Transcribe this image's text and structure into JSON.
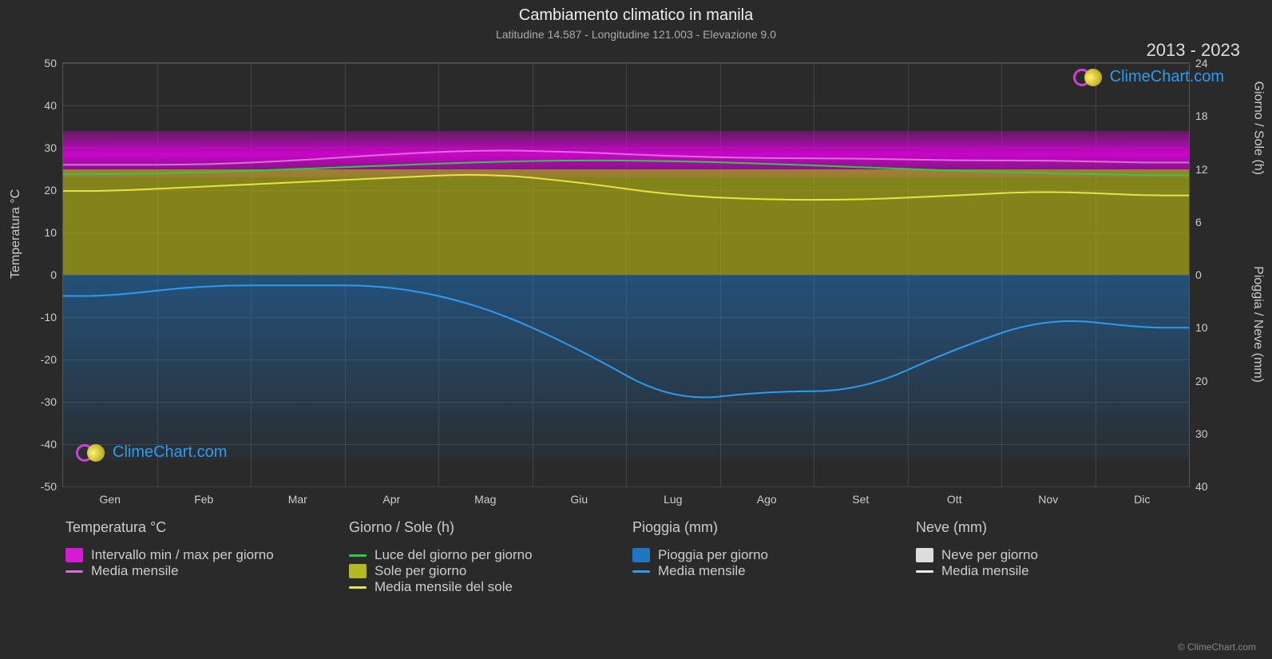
{
  "title": "Cambiamento climatico in manila",
  "subtitle": "Latitudine 14.587 - Longitudine 121.003 - Elevazione 9.0",
  "year_range": "2013 - 2023",
  "brand": "ClimeChart.com",
  "footer": "© ClimeChart.com",
  "axes": {
    "left_label": "Temperatura °C",
    "right_top_label": "Giorno / Sole (h)",
    "right_bot_label": "Pioggia / Neve (mm)",
    "ylim_left": [
      -50,
      50
    ],
    "ytick_step_left": 10,
    "right_top_ticks": [
      0,
      6,
      12,
      18,
      24
    ],
    "right_bot_ticks": [
      0,
      10,
      20,
      30,
      40
    ],
    "months": [
      "Gen",
      "Feb",
      "Mar",
      "Apr",
      "Mag",
      "Giu",
      "Lug",
      "Ago",
      "Set",
      "Ott",
      "Nov",
      "Dic"
    ]
  },
  "colors": {
    "background": "#2a2a2a",
    "grid": "#444",
    "text": "#cccccc",
    "temp_range": "#d61bd6",
    "temp_mean": "#da70d6",
    "daylight": "#2ecc40",
    "sun_fill": "#b5b820",
    "sun_mean": "#e4e447",
    "rain_fill": "#1f77c4",
    "rain_mean": "#2b9cf2",
    "snow_fill": "#dddddd",
    "snow_mean": "#eeeeee",
    "brand": "#2b9cf2"
  },
  "series": {
    "temp_mean_c": [
      26,
      26,
      27,
      28.5,
      29.5,
      29,
      28,
      27.5,
      27.5,
      27,
      27,
      26.5
    ],
    "temp_min_c": [
      23,
      23,
      24,
      25,
      25.5,
      25,
      24.5,
      24,
      24,
      24,
      24,
      23.5
    ],
    "temp_max_c": [
      30,
      30.5,
      32,
      33.5,
      34,
      32,
      31,
      31,
      31,
      31,
      30.5,
      30
    ],
    "daylight_h": [
      11.4,
      11.6,
      12,
      12.4,
      12.8,
      13,
      12.9,
      12.6,
      12.2,
      11.8,
      11.5,
      11.3
    ],
    "sun_mean_h": [
      9.5,
      10,
      10.5,
      11,
      11.5,
      10.5,
      9,
      8.5,
      8.5,
      9,
      9.5,
      9
    ],
    "rain_mean_mm": [
      4,
      2,
      2,
      2,
      6,
      14,
      24,
      22,
      22,
      14,
      8,
      10
    ]
  },
  "legend": {
    "col1_header": "Temperatura °C",
    "col1_items": [
      {
        "label": "Intervallo min / max per giorno",
        "type": "box",
        "colorKey": "temp_range"
      },
      {
        "label": "Media mensile",
        "type": "line",
        "colorKey": "temp_mean"
      }
    ],
    "col2_header": "Giorno / Sole (h)",
    "col2_items": [
      {
        "label": "Luce del giorno per giorno",
        "type": "line",
        "colorKey": "daylight"
      },
      {
        "label": "Sole per giorno",
        "type": "box",
        "colorKey": "sun_fill"
      },
      {
        "label": "Media mensile del sole",
        "type": "line",
        "colorKey": "sun_mean"
      }
    ],
    "col3_header": "Pioggia (mm)",
    "col3_items": [
      {
        "label": "Pioggia per giorno",
        "type": "box",
        "colorKey": "rain_fill"
      },
      {
        "label": "Media mensile",
        "type": "line",
        "colorKey": "rain_mean"
      }
    ],
    "col4_header": "Neve (mm)",
    "col4_items": [
      {
        "label": "Neve per giorno",
        "type": "box",
        "colorKey": "snow_fill"
      },
      {
        "label": "Media mensile",
        "type": "line",
        "colorKey": "snow_mean"
      }
    ]
  }
}
